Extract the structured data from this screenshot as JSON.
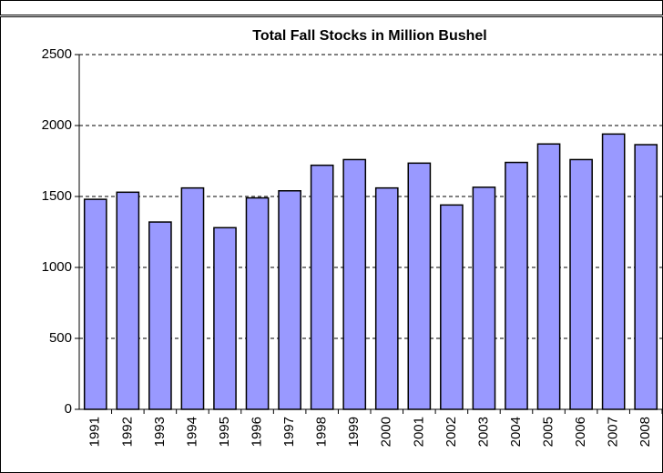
{
  "chart_data": {
    "type": "bar",
    "title": "Total Fall Stocks in Million Bushel",
    "categories": [
      "1991",
      "1992",
      "1993",
      "1994",
      "1995",
      "1996",
      "1997",
      "1998",
      "1999",
      "2000",
      "2001",
      "2002",
      "2003",
      "2004",
      "2005",
      "2006",
      "2007",
      "2008"
    ],
    "values": [
      1480,
      1530,
      1320,
      1560,
      1280,
      1490,
      1540,
      1720,
      1760,
      1560,
      1735,
      1440,
      1565,
      1740,
      1870,
      1760,
      1940,
      1865
    ],
    "color": "#9999ff",
    "ylim": [
      0,
      2500
    ],
    "yticks": [
      0,
      500,
      1000,
      1500,
      2000,
      2500
    ],
    "grid": true
  }
}
